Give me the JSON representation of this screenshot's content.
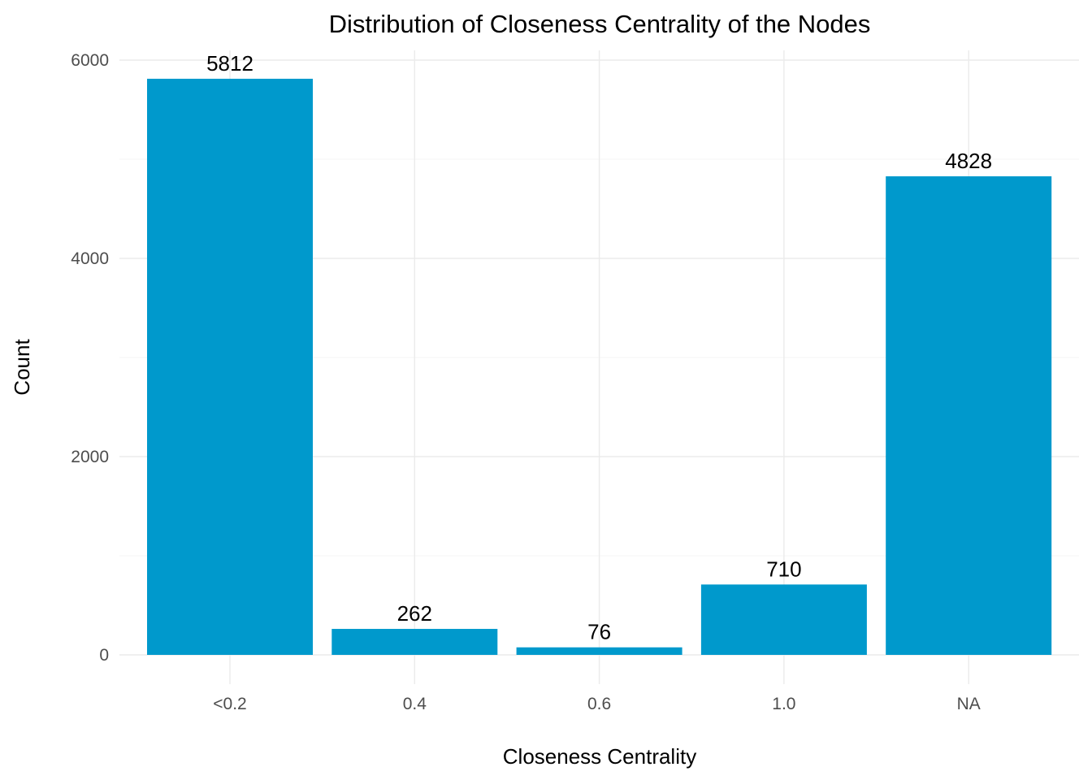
{
  "chart_data": {
    "type": "bar",
    "title": "Distribution of Closeness Centrality of the Nodes",
    "xlabel": "Closeness Centrality",
    "ylabel": "Count",
    "categories": [
      "<0.2",
      "0.4",
      "0.6",
      "1.0",
      "NA"
    ],
    "values": [
      5812,
      262,
      76,
      710,
      4828
    ],
    "data_labels": [
      "5812",
      "262",
      "76",
      "710",
      "4828"
    ],
    "y_ticks": [
      0,
      2000,
      4000,
      6000
    ],
    "y_tick_labels": [
      "0",
      "2000",
      "4000",
      "6000"
    ],
    "y_minor_ticks": [
      1000,
      3000,
      5000
    ],
    "ylim": [
      0,
      6000
    ],
    "bar_color": "#0099CC",
    "grid": true,
    "legend": "none"
  }
}
